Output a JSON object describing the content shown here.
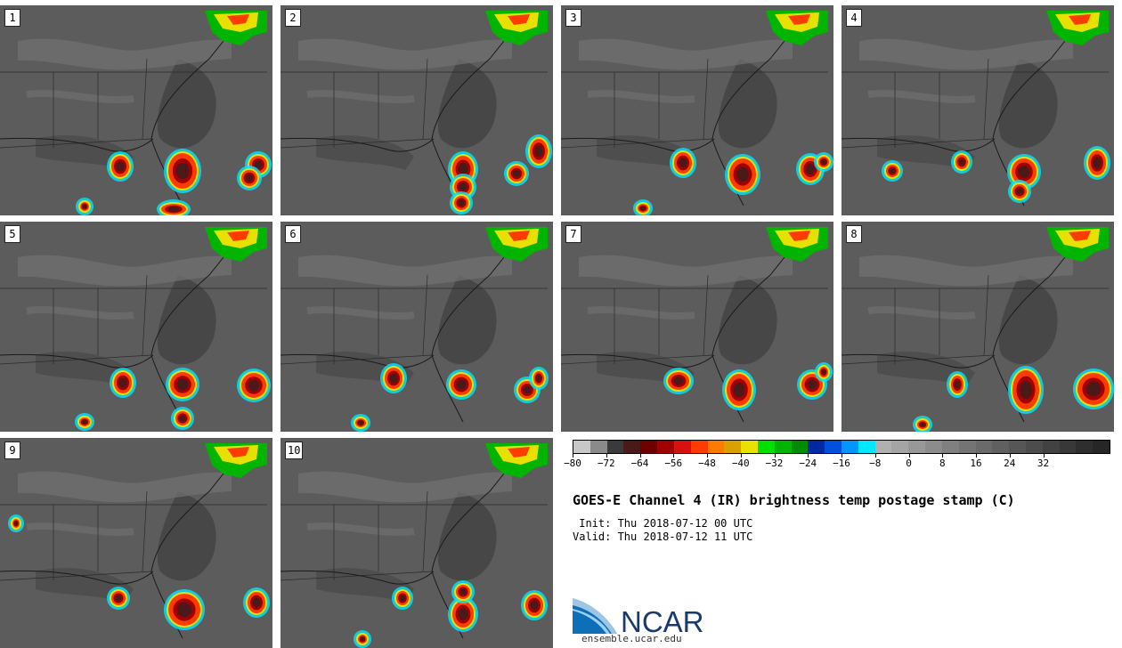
{
  "product": {
    "title": "GOES-E Channel 4 (IR) brightness temp postage stamp (C)",
    "init": " Init: Thu 2018-07-12 00 UTC",
    "valid": "Valid: Thu 2018-07-12 11 UTC"
  },
  "members": [
    {
      "label": "1"
    },
    {
      "label": "2"
    },
    {
      "label": "3"
    },
    {
      "label": "4"
    },
    {
      "label": "5"
    },
    {
      "label": "6"
    },
    {
      "label": "7"
    },
    {
      "label": "8"
    },
    {
      "label": "9"
    },
    {
      "label": "10"
    }
  ],
  "colorbar": {
    "colors": [
      "#c8c8c8",
      "#8a8a8a",
      "#3a3a3a",
      "#4a1a1a",
      "#6e0000",
      "#a00000",
      "#d81010",
      "#ff3c00",
      "#ff7a00",
      "#d8a000",
      "#e8e000",
      "#00e000",
      "#00b400",
      "#008c00",
      "#0028a0",
      "#0050e0",
      "#0096ff",
      "#00e8ff",
      "#b0b0b0",
      "#a4a4a4",
      "#989898",
      "#8c8c8c",
      "#808080",
      "#747474",
      "#6a6a6a",
      "#606060",
      "#565656",
      "#4c4c4c",
      "#424242",
      "#383838",
      "#2e2e2e",
      "#262626"
    ],
    "tick_labels": [
      "−80",
      "−72",
      "−64",
      "−56",
      "−48",
      "−40",
      "−32",
      "−24",
      "−16",
      "−8",
      "0",
      "8",
      "16",
      "24",
      "32"
    ]
  },
  "logo": {
    "name": "NCAR",
    "site": "ensemble.ucar.edu"
  }
}
